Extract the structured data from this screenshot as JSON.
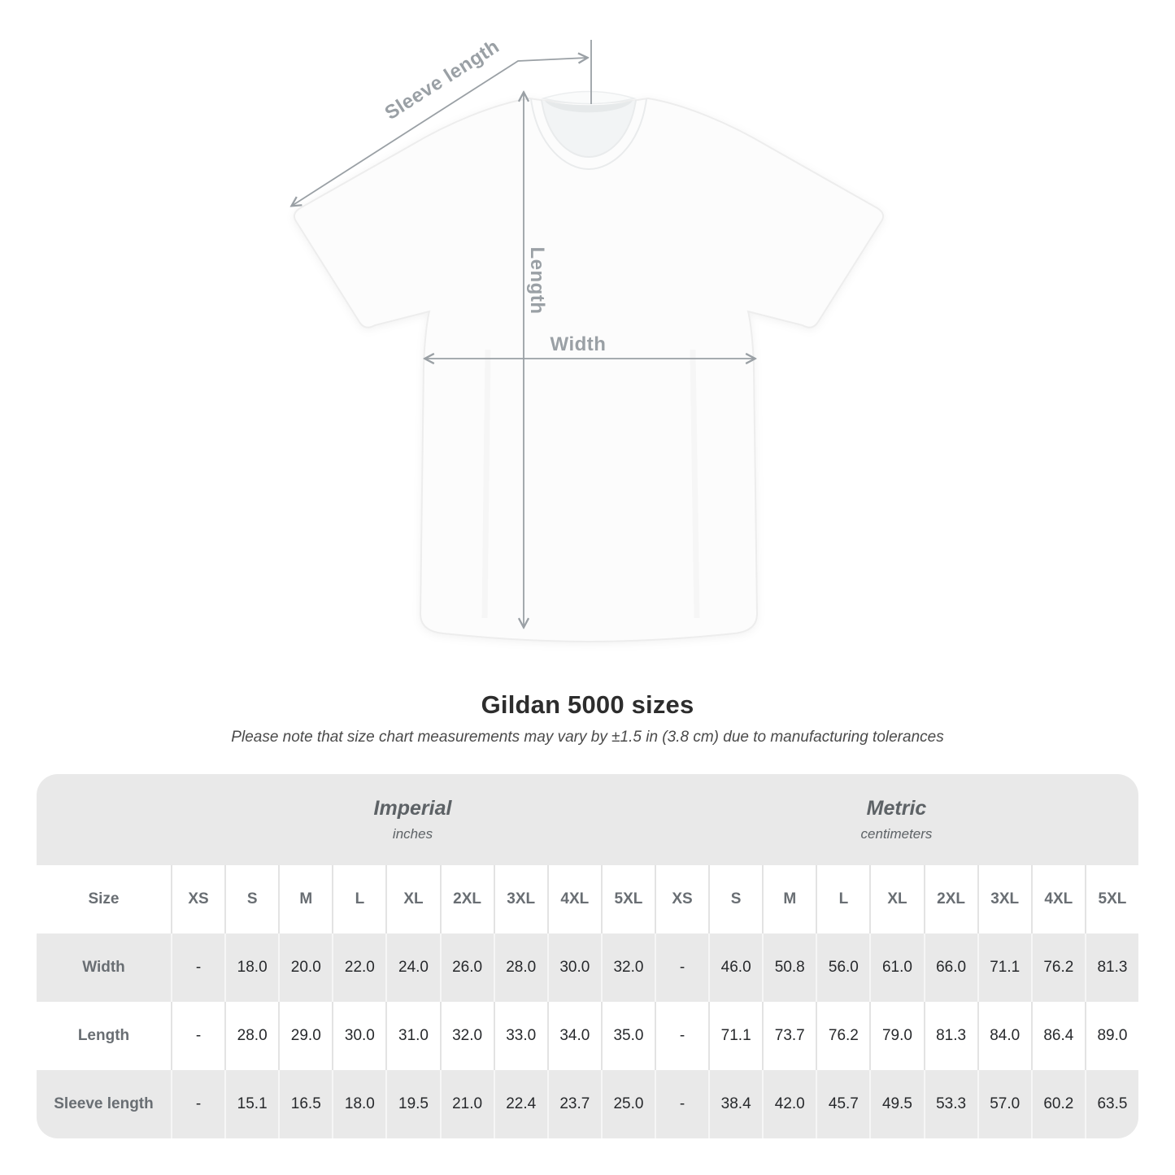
{
  "diagram": {
    "sleeve_length_label": "Sleeve length",
    "length_label": "Length",
    "width_label": "Width",
    "annotation_color": "#9aa0a5"
  },
  "title": "Gildan 5000 sizes",
  "subtitle": "Please note that size chart measurements may vary by ±1.5 in (3.8 cm) due to manufacturing tolerances",
  "table": {
    "size_header": "Size",
    "groups": [
      {
        "label": "Imperial",
        "unit": "inches"
      },
      {
        "label": "Metric",
        "unit": "centimeters"
      }
    ],
    "sizes": [
      "XS",
      "S",
      "M",
      "L",
      "XL",
      "2XL",
      "3XL",
      "4XL",
      "5XL"
    ],
    "rows": [
      {
        "label": "Width",
        "imperial": [
          "-",
          "18.0",
          "20.0",
          "22.0",
          "24.0",
          "26.0",
          "28.0",
          "30.0",
          "32.0"
        ],
        "metric": [
          "-",
          "46.0",
          "50.8",
          "56.0",
          "61.0",
          "66.0",
          "71.1",
          "76.2",
          "81.3"
        ]
      },
      {
        "label": "Length",
        "imperial": [
          "-",
          "28.0",
          "29.0",
          "30.0",
          "31.0",
          "32.0",
          "33.0",
          "34.0",
          "35.0"
        ],
        "metric": [
          "-",
          "71.1",
          "73.7",
          "76.2",
          "79.0",
          "81.3",
          "84.0",
          "86.4",
          "89.0"
        ]
      },
      {
        "label": "Sleeve length",
        "imperial": [
          "-",
          "15.1",
          "16.5",
          "18.0",
          "19.5",
          "21.0",
          "22.4",
          "23.7",
          "25.0"
        ],
        "metric": [
          "-",
          "38.4",
          "42.0",
          "45.7",
          "49.5",
          "53.3",
          "57.0",
          "60.2",
          "63.5"
        ]
      }
    ],
    "colors": {
      "band_gray": "#e9e9e9",
      "row_alt_gray": "#e9e9e9",
      "row_white": "#ffffff",
      "header_text": "#696e73",
      "value_text": "#27292c"
    }
  }
}
